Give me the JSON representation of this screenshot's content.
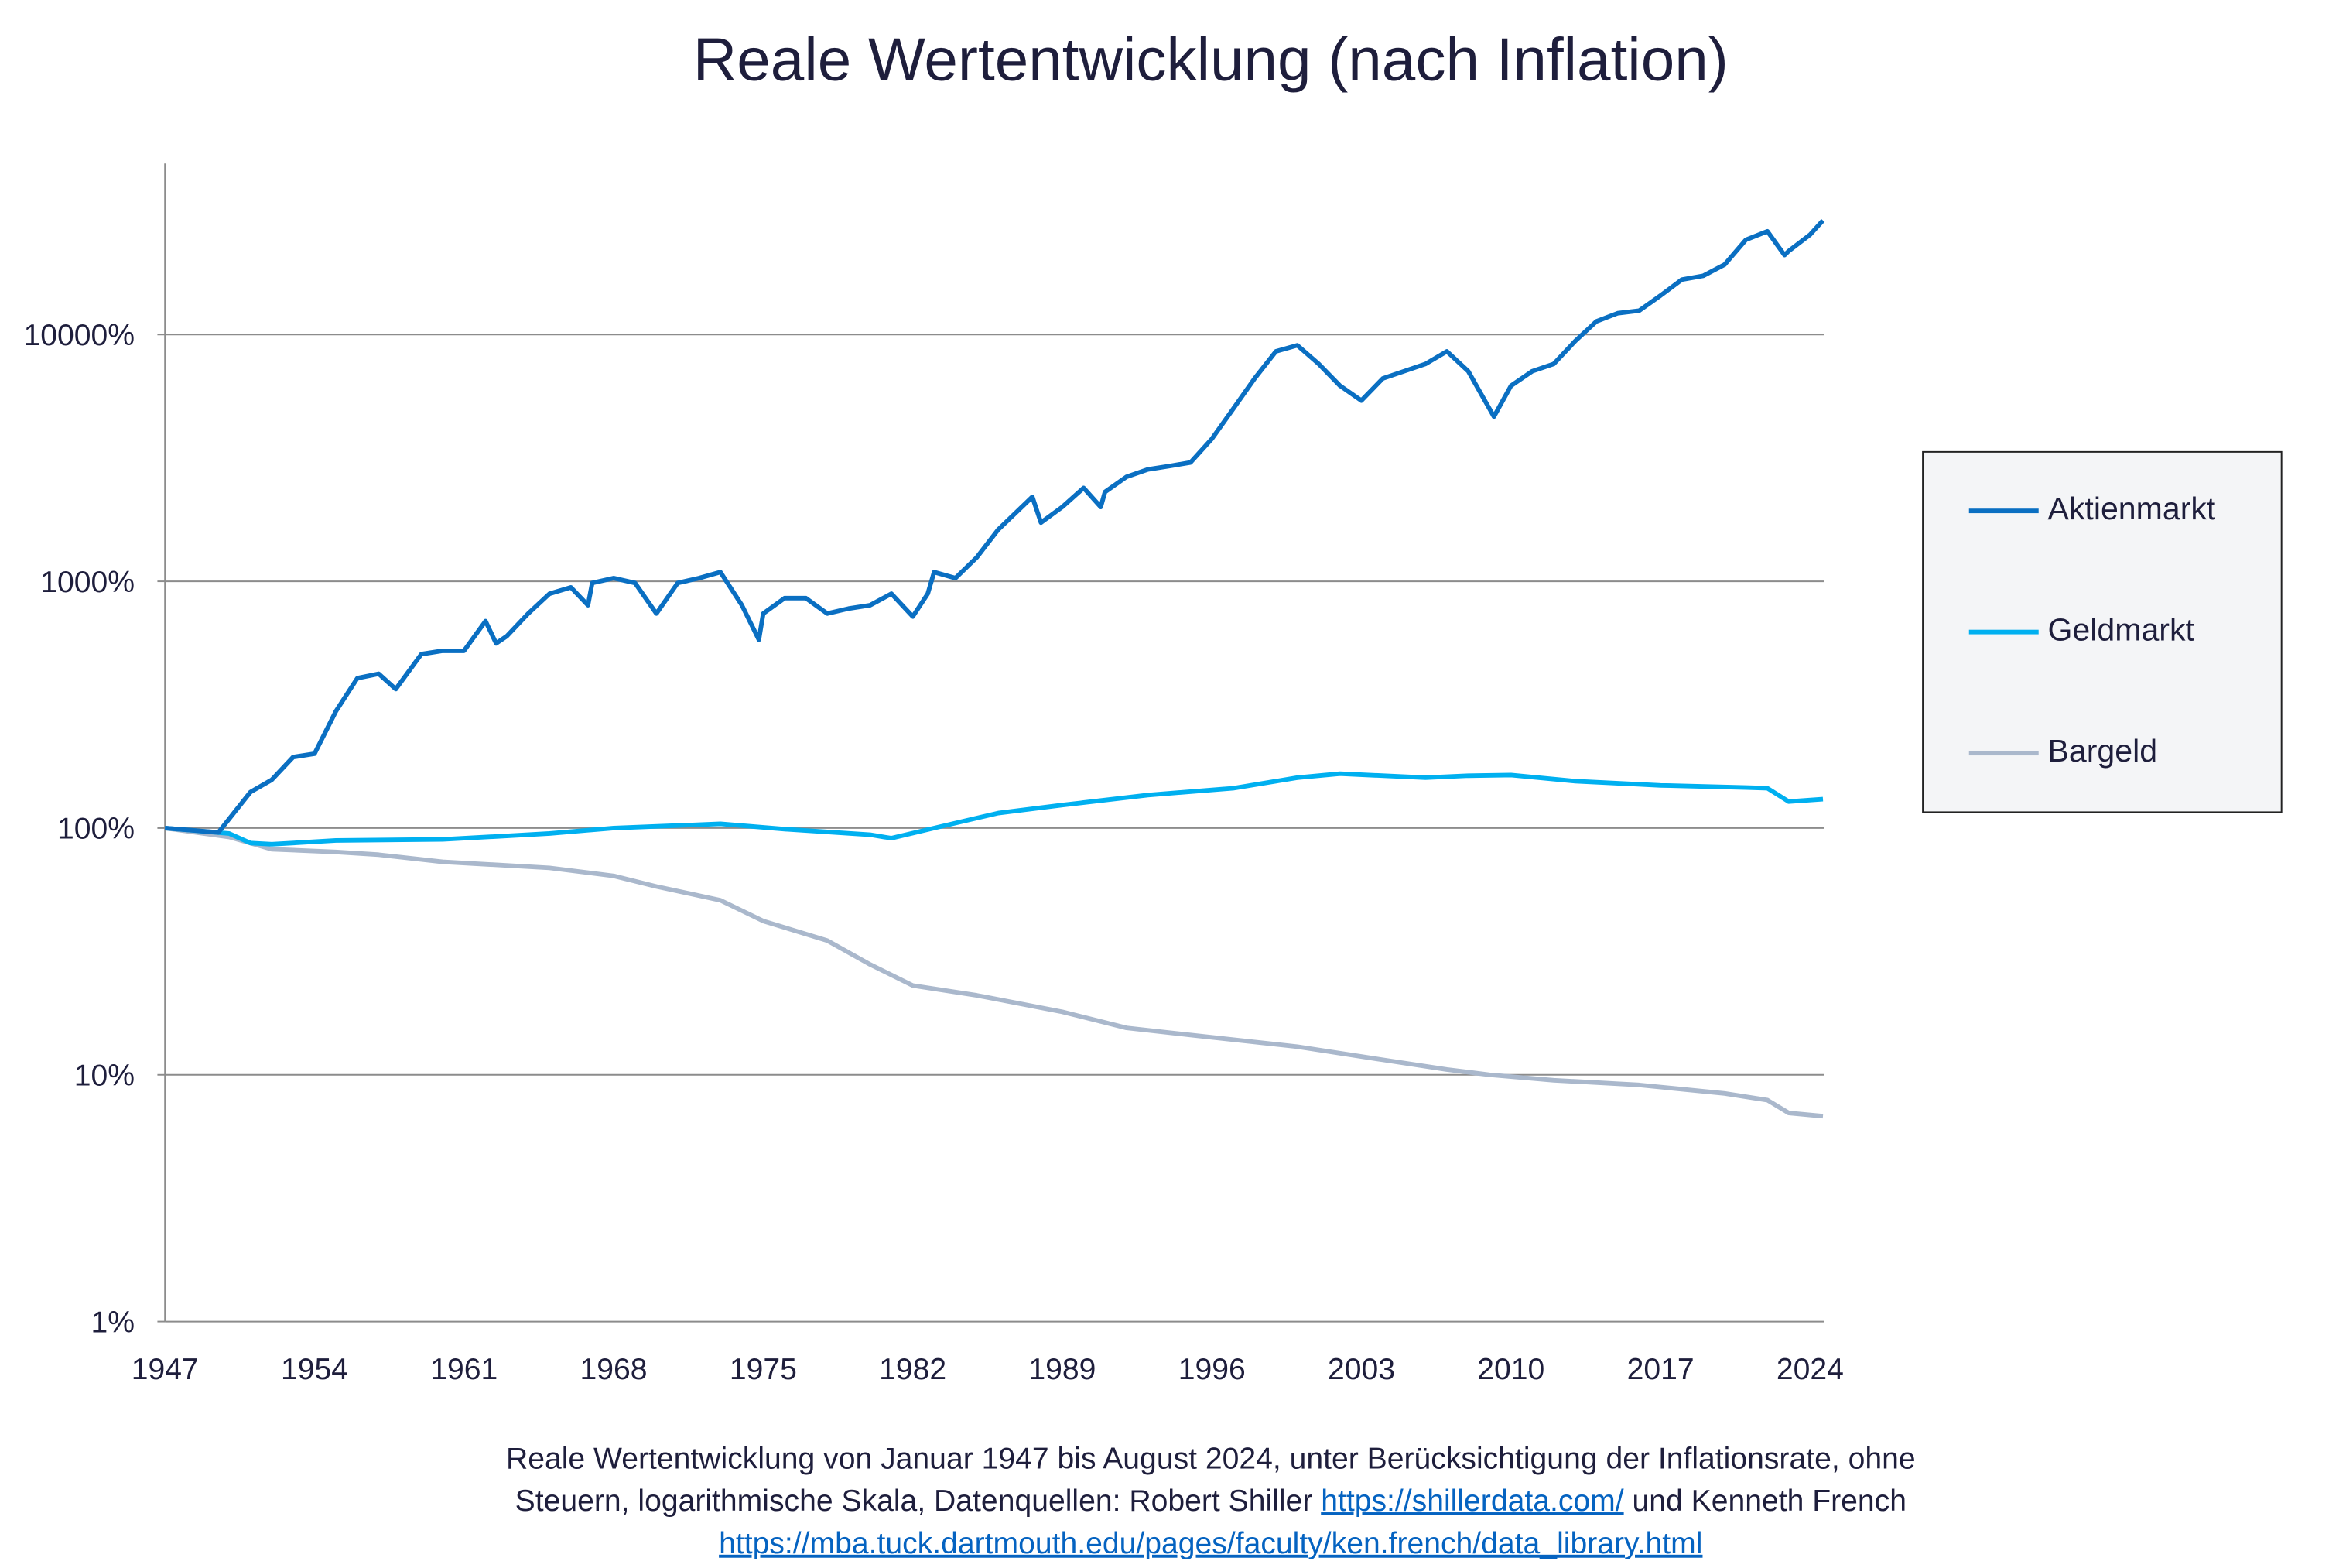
{
  "chart_data": {
    "type": "line",
    "title": "Reale Wertentwicklung (nach Inflation)",
    "yscale": "log",
    "ylim": [
      1,
      30000
    ],
    "xlim": [
      1947,
      2024.67
    ],
    "y_ticks": [
      1,
      10,
      100,
      1000,
      10000
    ],
    "y_tick_labels": [
      "1%",
      "10%",
      "100%",
      "1000%",
      "10000%"
    ],
    "x_ticks": [
      1947,
      1954,
      1961,
      1968,
      1975,
      1982,
      1989,
      1996,
      2003,
      2010,
      2017,
      2024
    ],
    "x_tick_labels": [
      "1947",
      "1954",
      "1961",
      "1968",
      "1975",
      "1982",
      "1989",
      "1996",
      "2003",
      "2010",
      "2017",
      "2024"
    ],
    "grid": "horizontal",
    "legend_position": "right",
    "series": [
      {
        "name": "Aktienmarkt",
        "color": "#0a6fc2",
        "x": [
          1947,
          1949.5,
          1951,
          1952,
          1953,
          1954,
          1955,
          1956,
          1957,
          1957.8,
          1959,
          1960,
          1961,
          1962,
          1962.5,
          1963,
          1964,
          1965,
          1966,
          1966.8,
          1967,
          1968,
          1969,
          1970,
          1971,
          1972,
          1973,
          1974,
          1974.8,
          1975,
          1976,
          1977,
          1978,
          1979,
          1980,
          1981,
          1982,
          1982.7,
          1983,
          1984,
          1985,
          1986,
          1987.6,
          1988,
          1989,
          1990,
          1990.8,
          1991,
          1992,
          1993,
          1994,
          1995,
          1996,
          1997,
          1998,
          1999,
          2000,
          2001,
          2002,
          2003,
          2004,
          2005,
          2006,
          2007,
          2008,
          2009.2,
          2010,
          2011,
          2012,
          2013,
          2014,
          2015,
          2016,
          2017,
          2018,
          2019,
          2020,
          2021,
          2022,
          2022.8,
          2023,
          2024,
          2024.6
        ],
        "y": [
          100,
          96,
          140,
          157,
          194,
          200,
          297,
          405,
          422,
          366,
          507,
          523,
          523,
          690,
          560,
          600,
          740,
          890,
          945,
          800,
          985,
          1030,
          985,
          740,
          985,
          1030,
          1090,
          800,
          580,
          740,
          855,
          855,
          740,
          775,
          800,
          890,
          720,
          890,
          1090,
          1030,
          1250,
          1620,
          2200,
          1730,
          2000,
          2390,
          2000,
          2300,
          2650,
          2840,
          2930,
          3030,
          3780,
          5000,
          6640,
          8550,
          9050,
          7600,
          6200,
          5400,
          6640,
          7100,
          7600,
          8550,
          7100,
          4650,
          6200,
          7100,
          7600,
          9400,
          11300,
          12200,
          12500,
          14400,
          16700,
          17300,
          19200,
          24200,
          26200,
          21000,
          21800,
          25400,
          29000
        ]
      },
      {
        "name": "Geldmarkt",
        "color": "#00b0f0",
        "x": [
          1947,
          1950,
          1951,
          1952,
          1955,
          1960,
          1965,
          1968,
          1973,
          1976,
          1980,
          1981,
          1983,
          1986,
          1989,
          1993,
          1997,
          2000,
          2002,
          2006,
          2008,
          2010,
          2013,
          2017,
          2021,
          2022,
          2023,
          2024.6
        ],
        "y": [
          100,
          95,
          87,
          86,
          89,
          90,
          95,
          100,
          104,
          99,
          94,
          91,
          100,
          115,
          124,
          136,
          145,
          160,
          166,
          160,
          163,
          164,
          155,
          149,
          146,
          145,
          128,
          131
        ]
      },
      {
        "name": "Bargeld",
        "color": "#aab8cc",
        "x": [
          1947,
          1950,
          1952,
          1955,
          1957,
          1960,
          1965,
          1968,
          1970,
          1973,
          1975,
          1978,
          1980,
          1982,
          1985,
          1989,
          1992,
          1995,
          2000,
          2004,
          2007,
          2009,
          2012,
          2016,
          2020,
          2022,
          2023,
          2024.6
        ],
        "y": [
          100,
          92,
          82,
          80,
          78,
          73,
          69,
          64,
          58,
          51,
          42,
          35,
          28,
          23,
          21,
          18,
          15.5,
          14.5,
          13,
          11.5,
          10.5,
          10,
          9.5,
          9.1,
          8.4,
          7.9,
          7.0,
          6.8
        ]
      }
    ]
  },
  "caption": {
    "line1": "Reale Wertentwicklung von Januar 1947 bis August 2024, unter Berücksichtigung der Inflationsrate, ohne",
    "line2_pre": "Steuern, logarithmische Skala, Datenquellen: Robert Shiller ",
    "link1": "https://shillerdata.com/",
    "line2_post": " und Kenneth French",
    "link2": "https://mba.tuck.dartmouth.edu/pages/faculty/ken.french/data_library.html"
  }
}
